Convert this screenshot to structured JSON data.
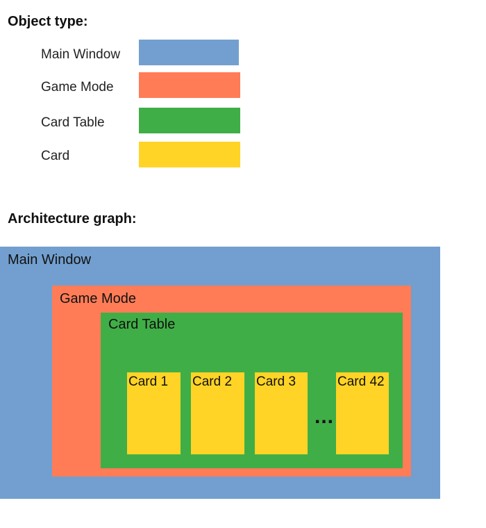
{
  "legend": {
    "heading": "Object type:",
    "items": [
      {
        "label": "Main Window",
        "color": "#729fcf"
      },
      {
        "label": "Game Mode",
        "color": "#ff7c57"
      },
      {
        "label": "Card Table",
        "color": "#40ae47"
      },
      {
        "label": "Card",
        "color": "#ffd426"
      }
    ]
  },
  "architecture": {
    "heading": "Architecture graph:",
    "main_window": {
      "label": "Main Window"
    },
    "game_mode": {
      "label": "Game Mode"
    },
    "card_table": {
      "label": "Card Table"
    },
    "cards": [
      {
        "label": "Card 1"
      },
      {
        "label": "Card 2"
      },
      {
        "label": "Card 3"
      },
      {
        "label": "Card 42"
      }
    ],
    "ellipsis": "..."
  }
}
